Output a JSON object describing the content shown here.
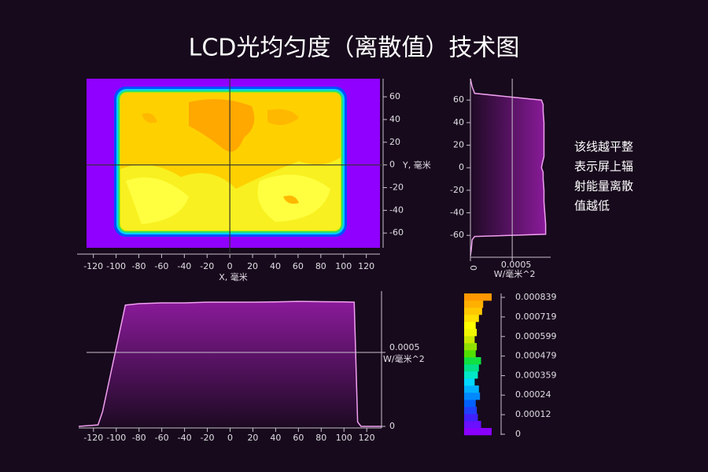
{
  "title": "LCD光均匀度（离散值）技术图",
  "annotation": [
    "该线越平整",
    "表示屏上辐",
    "射能量离散",
    "值越低"
  ],
  "chart_data": [
    {
      "type": "heatmap",
      "x_label": "X, 毫米",
      "y_label": "Y, 毫米",
      "xlim": [
        -126,
        132
      ],
      "ylim": [
        -73,
        76
      ],
      "xticks": [
        -120,
        -100,
        -80,
        -60,
        -40,
        -20,
        0,
        20,
        40,
        60,
        80,
        100,
        120
      ],
      "yticks": [
        -60,
        -40,
        -20,
        0,
        20,
        40,
        60
      ],
      "crosshair": [
        0,
        0
      ]
    },
    {
      "type": "line",
      "orientation": "vertical",
      "x_label": "W/毫米^2",
      "color": "#f0a0f0",
      "grid": true,
      "xlim": [
        0,
        0.00096
      ],
      "xticks": [
        0,
        0.0005
      ],
      "ylim": [
        -78,
        79
      ],
      "yticks": [
        -60,
        -40,
        -20,
        0,
        20,
        40,
        60
      ],
      "y": [
        -78,
        -73,
        -64,
        -61,
        -59,
        -50,
        -40,
        -30,
        -20,
        -10,
        -4,
        0,
        4,
        10,
        20,
        30,
        40,
        50,
        56,
        60,
        66,
        72,
        79
      ],
      "values": [
        0,
        1e-05,
        2e-05,
        5e-05,
        0.0009,
        0.0009,
        0.00089,
        0.00088,
        0.00088,
        0.00087,
        0.00087,
        0.00085,
        0.00086,
        0.00088,
        0.00088,
        0.00088,
        0.00088,
        0.00087,
        0.00087,
        0.00085,
        5e-05,
        2e-05,
        0
      ]
    },
    {
      "type": "line",
      "orientation": "horizontal",
      "y_label": "W/毫米^2",
      "color": "#f0a0f0",
      "grid": true,
      "xlim": [
        -133,
        133
      ],
      "xticks": [
        -120,
        -100,
        -80,
        -60,
        -40,
        -20,
        0,
        20,
        40,
        60,
        80,
        100,
        120
      ],
      "ylim": [
        0,
        0.000915
      ],
      "yticks": [
        0,
        0.0005
      ],
      "x": [
        -133,
        -116,
        -112,
        -92,
        -80,
        -60,
        -40,
        -20,
        0,
        20,
        40,
        60,
        80,
        100,
        109,
        111,
        112,
        115,
        133
      ],
      "values": [
        0,
        1e-05,
        0.0001,
        0.00082,
        0.00083,
        0.000835,
        0.000835,
        0.00084,
        0.00084,
        0.00084,
        0.000842,
        0.000845,
        0.000843,
        0.000842,
        0.00084,
        0.0003,
        3e-05,
        0,
        0
      ]
    },
    {
      "type": "colorbar",
      "ylim": [
        0,
        0.000839
      ],
      "yticks": [
        0,
        0.00012,
        0.00024,
        0.000359,
        0.000479,
        0.000599,
        0.000719,
        0.000839
      ],
      "counts": [
        1,
        0.5,
        0.35,
        0.3,
        0.25,
        0.45,
        0.4,
        0.2,
        0.35,
        0.4,
        0.5,
        0.25,
        0.3,
        0.2,
        0.3,
        0.25,
        0.4,
        0.55,
        0.6,
        1
      ],
      "colors": [
        "#8a00ff",
        "#6a10ff",
        "#4020ff",
        "#2040ff",
        "#0060ff",
        "#0088ff",
        "#00b0ff",
        "#00d8ff",
        "#00e8c8",
        "#00e088",
        "#10e040",
        "#50e000",
        "#90e000",
        "#c8e800",
        "#f0f800",
        "#ffff00",
        "#ffe000",
        "#ffc800",
        "#ffb000",
        "#ff9800"
      ]
    }
  ]
}
